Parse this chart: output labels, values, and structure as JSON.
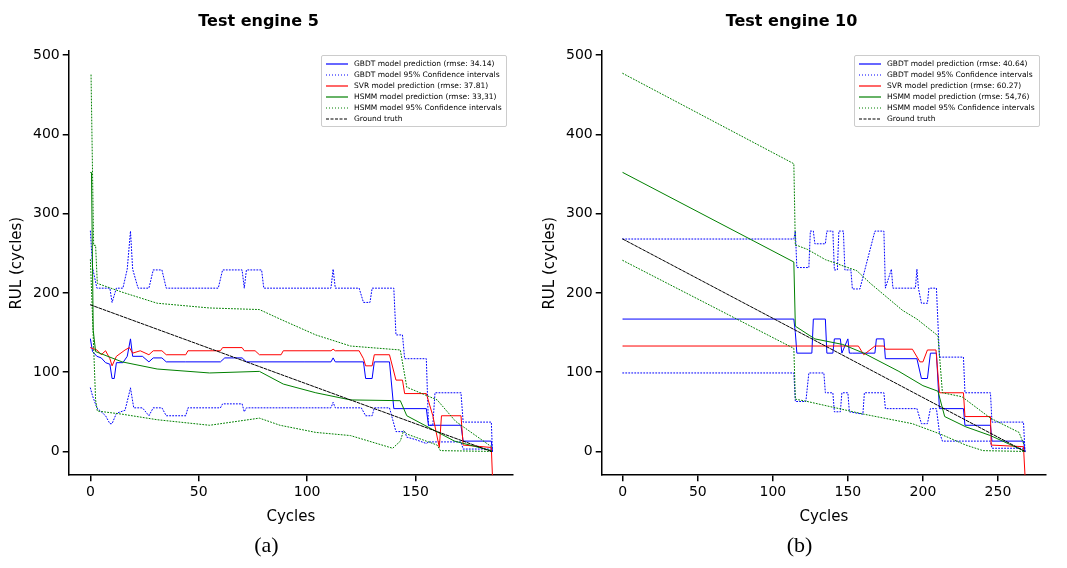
{
  "chart_data": [
    {
      "type": "line",
      "title": "Test engine 5",
      "xlabel": "Cycles",
      "ylabel": "RUL (cycles)",
      "xlim": [
        -10,
        195
      ],
      "xticks": [
        0,
        50,
        100,
        150
      ],
      "ylim": [
        -30,
        505
      ],
      "yticks": [
        0,
        100,
        200,
        300,
        400,
        500
      ],
      "legend": "top right",
      "marker": "none",
      "annotations": [
        "(a)"
      ],
      "series": [
        {
          "name": "GBDT model prediction (rmse: 34.14)",
          "color": "#0000ff",
          "line_style": "solid",
          "x": [
            0,
            1,
            3,
            5,
            7,
            9,
            10,
            11,
            12,
            15,
            17,
            18.5,
            19.5,
            24,
            27,
            29,
            33,
            35,
            44,
            60,
            62,
            70,
            72,
            80,
            99,
            111,
            112,
            113,
            126,
            127,
            130,
            131,
            138,
            140,
            155,
            156,
            171,
            172,
            185,
            185.5
          ],
          "values": [
            142,
            126,
            120,
            118,
            112,
            110,
            92,
            92,
            112,
            112,
            120,
            142,
            120,
            120,
            113,
            118,
            118,
            113,
            113,
            113,
            118,
            118,
            113,
            113,
            113,
            113,
            118,
            113,
            113,
            92,
            92,
            113,
            113,
            54,
            54,
            33,
            33,
            13,
            13,
            0
          ]
        },
        {
          "name": "GBDT model 95% Confidence intervals",
          "color": "#0000ff",
          "line_style": "dotted",
          "x": [
            0,
            1,
            3,
            9,
            10,
            12,
            15,
            17,
            18.5,
            19.5,
            22,
            27,
            29,
            33,
            35,
            59,
            61,
            70,
            71,
            72,
            79,
            80,
            111,
            112,
            113,
            124,
            126,
            129,
            130,
            140,
            141,
            144,
            145,
            155,
            156,
            158,
            159,
            171,
            172,
            185,
            185.5
          ],
          "values": [
            278,
            232,
            206,
            206,
            188,
            206,
            206,
            230,
            278,
            230,
            206,
            206,
            229,
            229,
            206,
            206,
            229,
            229,
            206,
            229,
            229,
            206,
            206,
            230,
            206,
            206,
            188,
            188,
            206,
            206,
            147,
            147,
            117,
            117,
            33,
            33,
            74,
            74,
            37,
            37,
            0
          ]
        },
        {
          "color": "#0000ff",
          "line_style": "dotted",
          "x": [
            0,
            1,
            3,
            5,
            7,
            9,
            10,
            12,
            16,
            18.5,
            20,
            24,
            27,
            29,
            33,
            35,
            44,
            45,
            60,
            61,
            70,
            71,
            72,
            88,
            111,
            112,
            113,
            125,
            127,
            130,
            131,
            138,
            140,
            141,
            145,
            146,
            150,
            155,
            156,
            171,
            172,
            185
          ],
          "values": [
            80,
            70,
            55,
            50,
            45,
            35,
            35,
            48,
            52,
            80,
            55,
            55,
            45,
            55,
            55,
            45,
            45,
            55,
            55,
            60,
            60,
            50,
            55,
            55,
            55,
            62,
            55,
            55,
            45,
            45,
            55,
            55,
            35,
            25,
            25,
            18,
            15,
            10,
            12,
            12,
            3,
            3
          ]
        },
        {
          "name": "SVR model prediction (rmse: 37.81)",
          "color": "#ff0000",
          "line_style": "solid",
          "x": [
            0,
            3,
            5,
            7,
            9,
            10,
            12,
            16,
            18,
            19.5,
            23,
            27,
            29,
            33,
            35,
            44,
            45,
            60,
            61,
            70,
            71,
            76,
            78,
            88,
            89,
            111,
            112,
            113,
            124,
            126,
            127,
            130,
            131,
            138,
            141,
            144,
            145,
            155,
            158,
            161,
            162,
            171,
            172,
            185,
            185.5
          ],
          "values": [
            131,
            128,
            122,
            127,
            117,
            108,
            120,
            128,
            131,
            124,
            127,
            122,
            127,
            127,
            122,
            122,
            127,
            127,
            131,
            131,
            127,
            127,
            122,
            122,
            127,
            127,
            129,
            127,
            127,
            117,
            108,
            108,
            122,
            122,
            90,
            90,
            73,
            73,
            45,
            5,
            45,
            45,
            8,
            5,
            -30
          ]
        },
        {
          "name": "HSMM model prediction (rmse: 33,31)",
          "color": "#008000",
          "line_style": "solid",
          "x": [
            0,
            0.5,
            1.3,
            2.4,
            14.6,
            30.8,
            55,
            78,
            89,
            104,
            120,
            143,
            146,
            168,
            185
          ],
          "values": [
            352,
            352,
            153,
            126,
            113,
            104,
            99,
            101,
            85,
            74,
            65,
            64,
            45,
            13,
            1
          ]
        },
        {
          "name": "HSMM model 95% Confidence intervals",
          "color": "#008000",
          "line_style": "dotted",
          "x": [
            0.3,
            1.5,
            2.4,
            3.2,
            14.6,
            30.8,
            55,
            78,
            87.5,
            104,
            120,
            143,
            146,
            160,
            168.5,
            185
          ],
          "values": [
            475,
            260,
            260,
            212,
            201,
            187,
            181,
            179,
            167,
            147,
            133,
            128,
            81,
            65,
            38,
            6
          ]
        },
        {
          "color": "#008000",
          "line_style": "dotted",
          "x": [
            0,
            2.4,
            3.2,
            14.6,
            30.8,
            55,
            78,
            87.5,
            104,
            120,
            139.5,
            143,
            144.5,
            146,
            160,
            161.5,
            185
          ],
          "values": [
            242,
            65,
            51,
            47,
            40,
            33,
            42,
            33,
            24,
            20,
            4,
            13,
            26,
            22,
            8,
            1,
            0
          ]
        },
        {
          "name": "Ground truth",
          "color": "#000000",
          "line_style": "dashed",
          "x": [
            0,
            185
          ],
          "values": [
            185,
            0
          ]
        }
      ]
    },
    {
      "type": "line",
      "title": "Test engine 10",
      "xlabel": "Cycles",
      "ylabel": "RUL (cycles)",
      "xlim": [
        -14,
        282
      ],
      "xticks": [
        0,
        50,
        100,
        150,
        200,
        250
      ],
      "ylim": [
        -30,
        505
      ],
      "yticks": [
        0,
        100,
        200,
        300,
        400,
        500
      ],
      "legend": "top right",
      "marker": "none",
      "annotations": [
        "(b)"
      ],
      "series": [
        {
          "name": "GBDT model prediction (rmse: 40.64)",
          "color": "#0000ff",
          "line_style": "solid",
          "x": [
            0,
            114,
            115,
            116,
            126,
            127,
            135,
            136,
            140,
            141,
            145,
            146,
            150,
            151,
            153,
            168,
            169,
            174,
            175,
            196,
            199,
            203,
            205,
            209,
            211,
            227,
            228,
            245,
            246,
            267,
            268
          ],
          "values": [
            167,
            167,
            150,
            124,
            124,
            167,
            167,
            124,
            124,
            142,
            142,
            124,
            142,
            124,
            124,
            124,
            142,
            142,
            117,
            117,
            92,
            92,
            124,
            124,
            54,
            54,
            33,
            33,
            13,
            13,
            0
          ]
        },
        {
          "name": "GBDT model 95% Confidence intervals",
          "color": "#0000ff",
          "line_style": "dotted",
          "x": [
            0,
            114,
            115,
            116,
            124,
            125,
            127,
            128,
            135,
            136,
            140,
            141,
            143,
            144,
            147,
            148,
            152,
            153,
            158,
            168,
            174,
            175,
            179,
            180,
            195,
            196,
            197,
            199,
            203,
            204,
            209,
            211,
            227,
            228,
            245,
            246,
            267,
            268
          ],
          "values": [
            268,
            268,
            278,
            232,
            232,
            278,
            278,
            262,
            262,
            278,
            278,
            229,
            229,
            278,
            278,
            229,
            229,
            205,
            205,
            278,
            278,
            206,
            230,
            206,
            206,
            230,
            206,
            187,
            187,
            206,
            206,
            119,
            119,
            74,
            74,
            37,
            37,
            0
          ]
        },
        {
          "color": "#0000ff",
          "line_style": "dotted",
          "x": [
            0,
            114,
            115,
            122,
            124,
            134,
            135,
            140,
            141,
            145,
            146,
            150,
            151,
            160,
            161,
            168,
            174,
            175,
            196,
            199,
            203,
            205,
            209,
            211,
            213,
            227,
            245,
            246,
            267
          ],
          "values": [
            99,
            99,
            63,
            63,
            99,
            99,
            74,
            74,
            50,
            50,
            74,
            74,
            50,
            47,
            74,
            74,
            74,
            54,
            54,
            35,
            35,
            54,
            54,
            24,
            13,
            13,
            13,
            4,
            4
          ]
        },
        {
          "name": "SVR model prediction (rmse: 60.27)",
          "color": "#ff0000",
          "line_style": "solid",
          "x": [
            0,
            115,
            157,
            160.6,
            168,
            174,
            175,
            193,
            198,
            200,
            203,
            208.7,
            211,
            227,
            228,
            245,
            245.5,
            267,
            268
          ],
          "values": [
            133,
            133,
            133,
            122,
            133,
            133,
            129,
            129,
            113,
            113,
            128,
            128,
            74,
            74,
            44,
            44,
            8,
            6,
            -30
          ]
        },
        {
          "name": "HSMM model prediction (rmse: 54,76)",
          "color": "#008000",
          "line_style": "solid",
          "x": [
            0,
            114,
            115,
            128,
            146.5,
            160.6,
            184,
            200,
            210,
            214.5,
            228.6,
            245,
            267
          ],
          "values": [
            352,
            239,
            158,
            142,
            135,
            124,
            101,
            83,
            76,
            44,
            31,
            20,
            1
          ]
        },
        {
          "name": "HSMM model 95% Confidence intervals",
          "color": "#008000",
          "line_style": "dotted",
          "x": [
            0,
            114,
            115,
            116,
            123,
            135,
            156,
            165,
            186.4,
            196,
            210,
            213,
            226,
            245,
            264,
            267
          ],
          "values": [
            477,
            363,
            260,
            260,
            255,
            242,
            228,
            212,
            178,
            167,
            146,
            74,
            69,
            42,
            24,
            10
          ]
        },
        {
          "color": "#008000",
          "line_style": "dotted",
          "x": [
            0,
            114,
            115,
            123,
            160.6,
            193,
            211.5,
            228.6,
            240,
            267
          ],
          "values": [
            241,
            130,
            66,
            63,
            47,
            35,
            22,
            8,
            1,
            0
          ]
        },
        {
          "name": "Ground truth",
          "color": "#000000",
          "line_style": "dashed",
          "x": [
            0,
            268
          ],
          "values": [
            268,
            0
          ]
        }
      ]
    }
  ]
}
